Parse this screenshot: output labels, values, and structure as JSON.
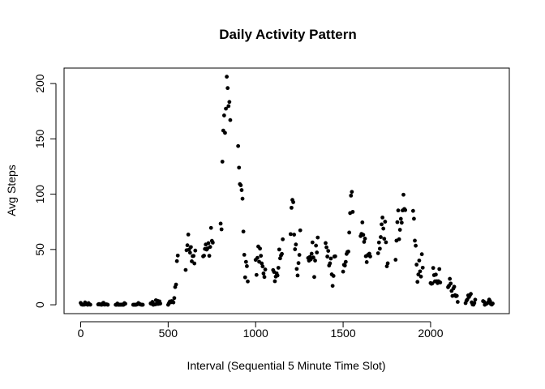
{
  "chart_data": {
    "type": "scatter",
    "title": "Daily Activity Pattern",
    "xlabel": "Interval (Sequential 5 Minute Time Slot)",
    "ylabel": "Avg Steps",
    "xlim": [
      -95,
      2450
    ],
    "ylim": [
      -8,
      214
    ],
    "xticks": [
      0,
      500,
      1000,
      1500,
      2000
    ],
    "yticks": [
      0,
      50,
      100,
      150,
      200
    ],
    "grid": false,
    "legend": "none",
    "marker_color": "#000000",
    "series": [
      {
        "points": [
          [
            0,
            1.7
          ],
          [
            5,
            0.3
          ],
          [
            10,
            0.1
          ],
          [
            15,
            0.2
          ],
          [
            20,
            0.1
          ],
          [
            25,
            2.1
          ],
          [
            30,
            0.5
          ],
          [
            35,
            0.9
          ],
          [
            40,
            0
          ],
          [
            45,
            1.5
          ],
          [
            50,
            0.3
          ],
          [
            55,
            0.1
          ],
          [
            100,
            0.3
          ],
          [
            105,
            0.7
          ],
          [
            110,
            0.2
          ],
          [
            115,
            0.3
          ],
          [
            120,
            0
          ],
          [
            125,
            1.1
          ],
          [
            130,
            1.8
          ],
          [
            135,
            0.2
          ],
          [
            140,
            0.2
          ],
          [
            145,
            0.4
          ],
          [
            150,
            0.3
          ],
          [
            155,
            0
          ],
          [
            200,
            0
          ],
          [
            205,
            0
          ],
          [
            210,
            1.1
          ],
          [
            215,
            0
          ],
          [
            220,
            0
          ],
          [
            225,
            0.1
          ],
          [
            230,
            0
          ],
          [
            235,
            0.2
          ],
          [
            240,
            0
          ],
          [
            245,
            0
          ],
          [
            250,
            1.5
          ],
          [
            255,
            0.9
          ],
          [
            300,
            0
          ],
          [
            305,
            0
          ],
          [
            310,
            0
          ],
          [
            315,
            0
          ],
          [
            320,
            0.2
          ],
          [
            325,
            0.6
          ],
          [
            330,
            1.6
          ],
          [
            335,
            0.6
          ],
          [
            340,
            0.5
          ],
          [
            345,
            0.1
          ],
          [
            350,
            0
          ],
          [
            355,
            0
          ],
          [
            400,
            1.2
          ],
          [
            405,
            0.9
          ],
          [
            410,
            2.6
          ],
          [
            415,
            0
          ],
          [
            420,
            0.3
          ],
          [
            425,
            0.4
          ],
          [
            430,
            4.1
          ],
          [
            435,
            0.7
          ],
          [
            440,
            3.5
          ],
          [
            445,
            0.8
          ],
          [
            450,
            3.1
          ],
          [
            455,
            1.1
          ],
          [
            500,
            0
          ],
          [
            505,
            1.6
          ],
          [
            510,
            3
          ],
          [
            515,
            2.2
          ],
          [
            520,
            3.3
          ],
          [
            525,
            3
          ],
          [
            530,
            2.1
          ],
          [
            535,
            6.1
          ],
          [
            540,
            16
          ],
          [
            545,
            18.3
          ],
          [
            550,
            39.5
          ],
          [
            555,
            44.5
          ],
          [
            600,
            31.5
          ],
          [
            605,
            49.3
          ],
          [
            610,
            53.8
          ],
          [
            615,
            63.5
          ],
          [
            620,
            50
          ],
          [
            625,
            47.1
          ],
          [
            630,
            52.2
          ],
          [
            635,
            39.3
          ],
          [
            640,
            44
          ],
          [
            645,
            44.2
          ],
          [
            650,
            37.4
          ],
          [
            655,
            49
          ],
          [
            700,
            43.8
          ],
          [
            705,
            44.4
          ],
          [
            710,
            50.5
          ],
          [
            715,
            54.5
          ],
          [
            720,
            49.9
          ],
          [
            725,
            51
          ],
          [
            730,
            55.7
          ],
          [
            735,
            44.3
          ],
          [
            740,
            52.3
          ],
          [
            745,
            69.5
          ],
          [
            750,
            57.8
          ],
          [
            755,
            56.2
          ],
          [
            800,
            73.4
          ],
          [
            805,
            68.2
          ],
          [
            810,
            129.4
          ],
          [
            815,
            157.5
          ],
          [
            820,
            171.2
          ],
          [
            825,
            155.4
          ],
          [
            830,
            177.3
          ],
          [
            835,
            206.2
          ],
          [
            840,
            195.9
          ],
          [
            845,
            179.6
          ],
          [
            850,
            183.4
          ],
          [
            855,
            167
          ],
          [
            900,
            143.5
          ],
          [
            905,
            124
          ],
          [
            910,
            109.1
          ],
          [
            915,
            108.1
          ],
          [
            920,
            103.7
          ],
          [
            925,
            95.9
          ],
          [
            930,
            66.2
          ],
          [
            935,
            45.2
          ],
          [
            940,
            24.8
          ],
          [
            945,
            38.8
          ],
          [
            950,
            34.9
          ],
          [
            955,
            21.1
          ],
          [
            1000,
            40.6
          ],
          [
            1005,
            27
          ],
          [
            1010,
            42.4
          ],
          [
            1015,
            52.7
          ],
          [
            1020,
            38.9
          ],
          [
            1025,
            50.8
          ],
          [
            1030,
            44.3
          ],
          [
            1035,
            37.4
          ],
          [
            1040,
            34.7
          ],
          [
            1045,
            28.3
          ],
          [
            1050,
            25.1
          ],
          [
            1055,
            31.9
          ],
          [
            1100,
            31.4
          ],
          [
            1105,
            29.7
          ],
          [
            1110,
            21.3
          ],
          [
            1115,
            25.5
          ],
          [
            1120,
            28.4
          ],
          [
            1125,
            26.5
          ],
          [
            1130,
            33.4
          ],
          [
            1135,
            49.98
          ],
          [
            1140,
            42
          ],
          [
            1145,
            44.6
          ],
          [
            1150,
            46
          ],
          [
            1155,
            59.2
          ],
          [
            1200,
            63.9
          ],
          [
            1205,
            87.7
          ],
          [
            1210,
            94.8
          ],
          [
            1215,
            92.8
          ],
          [
            1220,
            63.4
          ],
          [
            1225,
            50.2
          ],
          [
            1230,
            54.5
          ],
          [
            1235,
            32.4
          ],
          [
            1240,
            26.5
          ],
          [
            1245,
            37.7
          ],
          [
            1250,
            45.1
          ],
          [
            1255,
            67.3
          ],
          [
            1300,
            42.3
          ],
          [
            1305,
            39.9
          ],
          [
            1310,
            43.3
          ],
          [
            1315,
            40.98
          ],
          [
            1320,
            46.2
          ],
          [
            1325,
            56.4
          ],
          [
            1330,
            42.8
          ],
          [
            1335,
            25.1
          ],
          [
            1340,
            39.97
          ],
          [
            1345,
            53.5
          ],
          [
            1350,
            47.3
          ],
          [
            1355,
            60.8
          ],
          [
            1400,
            55.8
          ],
          [
            1405,
            51.96
          ],
          [
            1410,
            43.6
          ],
          [
            1415,
            48.7
          ],
          [
            1420,
            35.5
          ],
          [
            1425,
            37.5
          ],
          [
            1430,
            41.8
          ],
          [
            1435,
            27.5
          ],
          [
            1440,
            17.1
          ],
          [
            1445,
            26.1
          ],
          [
            1450,
            43.6
          ],
          [
            1455,
            43.8
          ],
          [
            1500,
            30
          ],
          [
            1505,
            36.1
          ],
          [
            1510,
            35.5
          ],
          [
            1515,
            38.8
          ],
          [
            1520,
            46
          ],
          [
            1525,
            47.8
          ],
          [
            1530,
            48.1
          ],
          [
            1535,
            65.3
          ],
          [
            1540,
            82.9
          ],
          [
            1545,
            98.7
          ],
          [
            1550,
            102.1
          ],
          [
            1555,
            84
          ],
          [
            1600,
            62.1
          ],
          [
            1605,
            64.1
          ],
          [
            1610,
            74.5
          ],
          [
            1615,
            63.2
          ],
          [
            1620,
            56.9
          ],
          [
            1625,
            59.8
          ],
          [
            1630,
            43.9
          ],
          [
            1635,
            38.6
          ],
          [
            1640,
            44.7
          ],
          [
            1645,
            45.5
          ],
          [
            1650,
            46.2
          ],
          [
            1655,
            43.7
          ],
          [
            1700,
            46.6
          ],
          [
            1705,
            56.3
          ],
          [
            1710,
            50.7
          ],
          [
            1715,
            61.2
          ],
          [
            1720,
            72.7
          ],
          [
            1725,
            78.9
          ],
          [
            1730,
            68.9
          ],
          [
            1735,
            59.7
          ],
          [
            1740,
            75.1
          ],
          [
            1745,
            56.5
          ],
          [
            1750,
            34.8
          ],
          [
            1755,
            37.5
          ],
          [
            1800,
            40.7
          ],
          [
            1805,
            58
          ],
          [
            1810,
            74.7
          ],
          [
            1815,
            85.3
          ],
          [
            1820,
            59.3
          ],
          [
            1825,
            67.8
          ],
          [
            1830,
            77.7
          ],
          [
            1835,
            74.2
          ],
          [
            1840,
            85.3
          ],
          [
            1845,
            99.5
          ],
          [
            1850,
            86.6
          ],
          [
            1855,
            85.6
          ],
          [
            1900,
            84.9
          ],
          [
            1905,
            77.8
          ],
          [
            1910,
            58
          ],
          [
            1915,
            53.4
          ],
          [
            1920,
            36.3
          ],
          [
            1925,
            20.7
          ],
          [
            1930,
            27.4
          ],
          [
            1935,
            40
          ],
          [
            1940,
            30.2
          ],
          [
            1945,
            25.5
          ],
          [
            1950,
            45.7
          ],
          [
            1955,
            33.5
          ],
          [
            2000,
            19.6
          ],
          [
            2005,
            19
          ],
          [
            2010,
            19.3
          ],
          [
            2015,
            33.3
          ],
          [
            2020,
            26.8
          ],
          [
            2025,
            21.2
          ],
          [
            2030,
            27.3
          ],
          [
            2035,
            21.3
          ],
          [
            2040,
            19.6
          ],
          [
            2045,
            21.3
          ],
          [
            2050,
            32.3
          ],
          [
            2055,
            20.2
          ],
          [
            2100,
            15.9
          ],
          [
            2105,
            17.2
          ],
          [
            2110,
            23.5
          ],
          [
            2115,
            19.2
          ],
          [
            2120,
            12.5
          ],
          [
            2125,
            8
          ],
          [
            2130,
            14.7
          ],
          [
            2135,
            16.3
          ],
          [
            2140,
            8.7
          ],
          [
            2145,
            7.8
          ],
          [
            2150,
            8.1
          ],
          [
            2155,
            2.6
          ],
          [
            2200,
            1.5
          ],
          [
            2205,
            3.7
          ],
          [
            2210,
            4.8
          ],
          [
            2215,
            8.5
          ],
          [
            2220,
            7.1
          ],
          [
            2225,
            8.7
          ],
          [
            2230,
            9.8
          ],
          [
            2235,
            2.2
          ],
          [
            2240,
            0.3
          ],
          [
            2245,
            0.1
          ],
          [
            2250,
            1.6
          ],
          [
            2255,
            4.6
          ],
          [
            2300,
            3.3
          ],
          [
            2305,
            2.8
          ],
          [
            2310,
            0
          ],
          [
            2315,
            0.8
          ],
          [
            2320,
            0.96
          ],
          [
            2325,
            1.6
          ],
          [
            2330,
            2.6
          ],
          [
            2335,
            4.7
          ],
          [
            2340,
            3.3
          ],
          [
            2345,
            0.6
          ],
          [
            2350,
            0.2
          ],
          [
            2355,
            1.1
          ]
        ]
      }
    ]
  }
}
